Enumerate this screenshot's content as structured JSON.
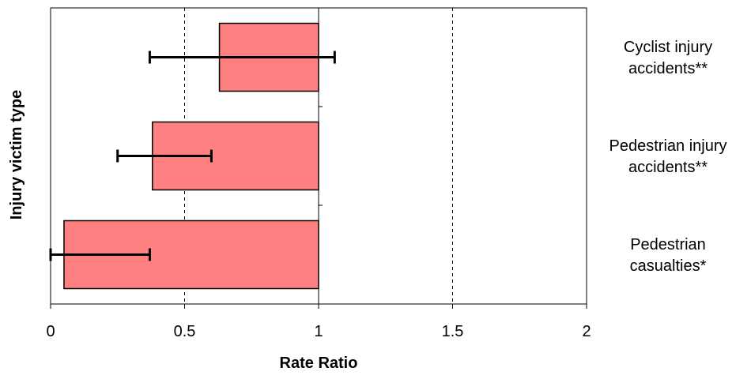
{
  "chart_data": {
    "type": "bar",
    "orientation": "horizontal",
    "xlabel": "Rate Ratio",
    "ylabel": "Injury victim type",
    "xlim": [
      0,
      2
    ],
    "x_ticks": [
      "0",
      "0.5",
      "1",
      "1.5",
      "2"
    ],
    "reference_value": 1,
    "grid": "vertical dashed at 0.5, 1.5; solid at 1",
    "categories": [
      "Cyclist injury accidents**",
      "Pedestrian injury accidents**",
      "Pedestrian casualties*"
    ],
    "category_label_lines": [
      [
        "Cyclist injury",
        "accidents**"
      ],
      [
        "Pedestrian injury",
        "accidents**"
      ],
      [
        "Pedestrian",
        "casualties*"
      ]
    ],
    "values": [
      0.63,
      0.38,
      0.05
    ],
    "error_low": [
      0.37,
      0.25,
      0.0
    ],
    "error_high": [
      1.06,
      0.6,
      0.37
    ],
    "colors": {
      "bar_fill": "#ff8080",
      "bar_stroke": "#000000",
      "error_bar": "#000000",
      "grid": "#000000"
    }
  }
}
